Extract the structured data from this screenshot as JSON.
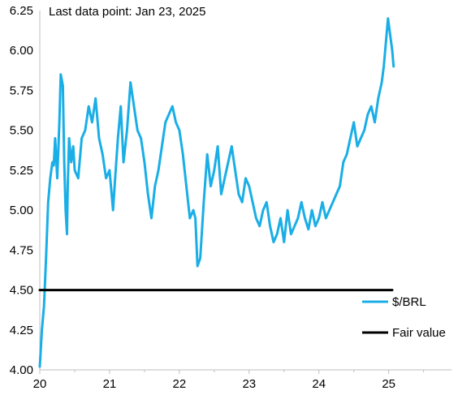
{
  "chart_data": {
    "type": "line",
    "title": "",
    "xlabel": "",
    "ylabel": "",
    "annotation": "Last data point: Jan 23, 2025",
    "xlim": [
      20,
      25.9
    ],
    "ylim": [
      4.0,
      6.25
    ],
    "x_ticks": [
      "20",
      "21",
      "22",
      "23",
      "24",
      "25"
    ],
    "y_ticks": [
      "4.00",
      "4.25",
      "4.50",
      "4.75",
      "5.00",
      "5.25",
      "5.50",
      "5.75",
      "6.00",
      "6.25"
    ],
    "grid": false,
    "legend_position": "right",
    "series": [
      {
        "name": "$/BRL",
        "color": "#1aaee6",
        "x": [
          20.0,
          20.03,
          20.06,
          20.09,
          20.12,
          20.15,
          20.18,
          20.2,
          20.22,
          20.25,
          20.28,
          20.3,
          20.33,
          20.35,
          20.37,
          20.39,
          20.4,
          20.42,
          20.45,
          20.48,
          20.5,
          20.55,
          20.6,
          20.65,
          20.7,
          20.75,
          20.8,
          20.85,
          20.9,
          20.95,
          21.0,
          21.05,
          21.08,
          21.12,
          21.16,
          21.2,
          21.25,
          21.3,
          21.35,
          21.4,
          21.45,
          21.5,
          21.55,
          21.6,
          21.65,
          21.7,
          21.75,
          21.8,
          21.85,
          21.9,
          21.95,
          22.0,
          22.05,
          22.1,
          22.15,
          22.2,
          22.23,
          22.26,
          22.3,
          22.35,
          22.4,
          22.45,
          22.5,
          22.55,
          22.6,
          22.65,
          22.7,
          22.75,
          22.8,
          22.85,
          22.9,
          22.95,
          23.0,
          23.05,
          23.1,
          23.15,
          23.2,
          23.25,
          23.3,
          23.35,
          23.4,
          23.45,
          23.5,
          23.55,
          23.6,
          23.65,
          23.7,
          23.75,
          23.8,
          23.85,
          23.9,
          23.95,
          24.0,
          24.05,
          24.1,
          24.15,
          24.2,
          24.25,
          24.3,
          24.35,
          24.4,
          24.45,
          24.5,
          24.55,
          24.6,
          24.65,
          24.7,
          24.75,
          24.8,
          24.85,
          24.9,
          24.93,
          24.96,
          24.99,
          25.02,
          25.05,
          25.07
        ],
        "values": [
          4.02,
          4.25,
          4.4,
          4.7,
          5.05,
          5.2,
          5.3,
          5.28,
          5.45,
          5.2,
          5.55,
          5.85,
          5.78,
          5.3,
          5.0,
          4.85,
          5.15,
          5.45,
          5.3,
          5.4,
          5.25,
          5.2,
          5.45,
          5.5,
          5.65,
          5.55,
          5.7,
          5.45,
          5.35,
          5.2,
          5.25,
          5.0,
          5.2,
          5.45,
          5.65,
          5.3,
          5.5,
          5.8,
          5.65,
          5.5,
          5.45,
          5.3,
          5.1,
          4.95,
          5.15,
          5.25,
          5.4,
          5.55,
          5.6,
          5.65,
          5.55,
          5.5,
          5.35,
          5.15,
          4.95,
          5.0,
          4.95,
          4.65,
          4.7,
          5.05,
          5.35,
          5.15,
          5.25,
          5.4,
          5.1,
          5.2,
          5.3,
          5.4,
          5.25,
          5.1,
          5.05,
          5.2,
          5.15,
          5.05,
          4.95,
          4.9,
          5.0,
          5.05,
          4.9,
          4.8,
          4.85,
          4.95,
          4.8,
          5.0,
          4.85,
          4.9,
          4.95,
          5.05,
          4.95,
          4.88,
          5.0,
          4.9,
          4.95,
          5.05,
          4.95,
          5.0,
          5.05,
          5.1,
          5.15,
          5.3,
          5.35,
          5.45,
          5.55,
          5.4,
          5.45,
          5.5,
          5.6,
          5.65,
          5.55,
          5.7,
          5.8,
          5.9,
          6.05,
          6.2,
          6.1,
          6.0,
          5.9
        ]
      },
      {
        "name": "Fair value",
        "color": "#000000",
        "x": [
          20.0,
          25.05
        ],
        "values": [
          4.5,
          4.5
        ]
      }
    ]
  }
}
